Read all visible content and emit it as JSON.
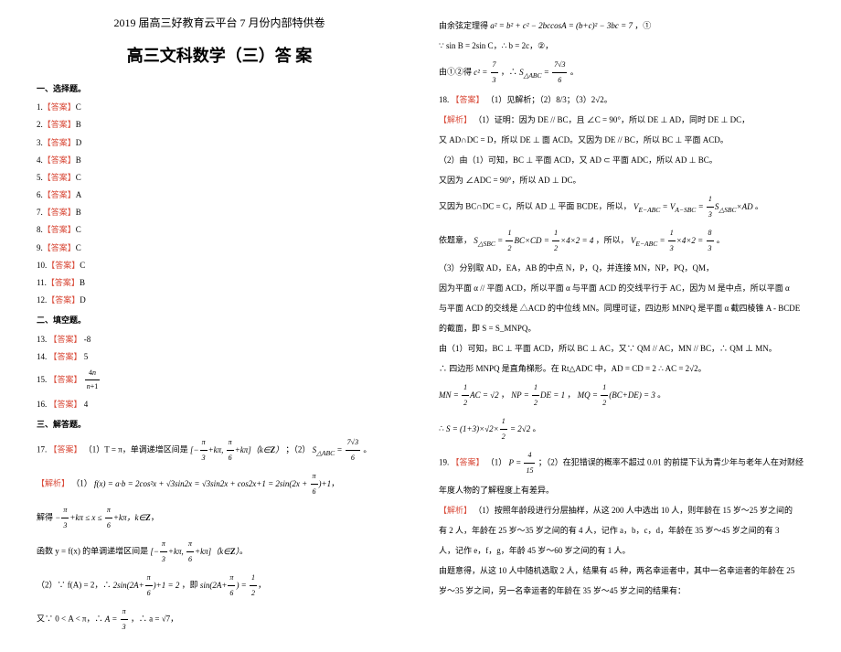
{
  "header": {
    "title": "2019 届高三好教育云平台 7 月份内部特供卷",
    "subtitle": "高三文科数学（三）答 案"
  },
  "sections": {
    "choice": "一、选择题。",
    "fill": "二、填空题。",
    "solve": "三、解答题。"
  },
  "choice_answers": {
    "label": "【答案】",
    "items": [
      {
        "num": "1.",
        "ans": "C"
      },
      {
        "num": "2.",
        "ans": "B"
      },
      {
        "num": "3.",
        "ans": "D"
      },
      {
        "num": "4.",
        "ans": "B"
      },
      {
        "num": "5.",
        "ans": "C"
      },
      {
        "num": "6.",
        "ans": "A"
      },
      {
        "num": "7.",
        "ans": "B"
      },
      {
        "num": "8.",
        "ans": "C"
      },
      {
        "num": "9.",
        "ans": "C"
      },
      {
        "num": "10.",
        "ans": "C"
      },
      {
        "num": "11.",
        "ans": "B"
      },
      {
        "num": "12.",
        "ans": "D"
      }
    ]
  },
  "fill_answers": {
    "label": "【答案】",
    "items": [
      {
        "num": "13.",
        "ans": "-8"
      },
      {
        "num": "14.",
        "ans": "5"
      },
      {
        "num": "15.",
        "ans": "4n/(n+1)"
      },
      {
        "num": "16.",
        "ans": "4"
      }
    ]
  },
  "q17": {
    "num": "17.",
    "answer_label": "【答案】",
    "answer_text": "（1）T = π，单调递增区间是",
    "answer_text2": "；（2）",
    "answer_text3": "。",
    "analysis_label": "【解析】",
    "line1": "（1）",
    "line2": "解得",
    "line3": "函数 y = f(x) 的单调递增区间是",
    "line4": "（2）∵ f(A) = 2，∴",
    "line4b": "，即",
    "line5": "又∵ 0 < A < π，∴",
    "line5b": "，∴ a = √7，"
  },
  "right_col": {
    "line1_a": "由余弦定理得",
    "line1_b": "，①",
    "line2": "∵ sin B = 2sin C，∴ b = 2c，②，",
    "line3a": "由①②得",
    "line3b": "，∴",
    "line3c": "。",
    "q18_num": "18.",
    "q18_label": "【答案】",
    "q18_text": "（1）见解析；（2）8/3；（3）2√2。",
    "q18_analysis": "【解析】",
    "q18_l1": "（1）证明：因为 DE // BC，且 ∠C = 90°，所以 DE ⊥ AD，同时 DE ⊥ DC，",
    "q18_l2": "又 AD∩DC = D，所以 DE ⊥ 面 ACD。又因为 DE // BC，所以 BC ⊥ 平面 ACD。",
    "q18_l3": "（2）由（1）可知，BC ⊥ 平面 ACD，又 AD ⊂ 平面 ADC，所以 AD ⊥ BC。",
    "q18_l4": "又因为 ∠ADC = 90°，所以 AD ⊥ DC。",
    "q18_l5a": "又因为 BC∩DC = C，所以 AD ⊥ 平面 BCDE，所以，",
    "q18_l5b": "。",
    "q18_l6a": "依题意，",
    "q18_l6b": "，所以，",
    "q18_l6c": "。",
    "q18_l7": "（3）分别取 AD，EA，AB 的中点 N，P，Q，并连接 MN，NP，PQ，QM，",
    "q18_l8": "因为平面 α // 平面 ACD，所以平面 α 与平面 ACD 的交线平行于 AC，因为 M 是中点，所以平面 α",
    "q18_l9": "与平面 ACD 的交线是 △ACD 的中位线 MN。同理可证，四边形 MNPQ 是平面 α 截四棱锥 A - BCDE",
    "q18_l10": "的截面，即 S = S_MNPQ。",
    "q18_l11": "由（1）可知，BC ⊥ 平面 ACD，所以 BC ⊥ AC，又∵ QM // AC，MN // BC，∴ QM ⊥ MN。",
    "q18_l12": "∴ 四边形 MNPQ 是直角梯形。在 Rt△ADC 中，AD = CD = 2 ∴ AC = 2√2。",
    "q18_l13": "，",
    "q18_l13b": "，",
    "q18_l13c": "。",
    "q18_l14": "∴",
    "q18_l14b": "。",
    "q19_num": "19.",
    "q19_label": "【答案】",
    "q19_text1": "（1）",
    "q19_text2": "；（2）在犯错误的概率不超过 0.01 的前提下认为青少年与老年人在对财经",
    "q19_text3": "年度人物的了解程度上有差异。",
    "q19_analysis": "【解析】",
    "q19_l1": "（1）按照年龄段进行分层抽样，从这 200 人中选出 10 人，则年龄在 15 岁～25 岁之间的",
    "q19_l2": "有 2 人，年龄在 25 岁～35 岁之间的有 4 人，记作 a，b，c，d，年龄在 35 岁～45 岁之间的有 3",
    "q19_l3": "人，记作 e，f，g，年龄 45 岁～60 岁之间的有 1 人。",
    "q19_l4": "由题意得，从这 10 人中随机选取 2 人，结果有 45 种，两名幸运者中，其中一名幸运者的年龄在 25",
    "q19_l5": "岁～35 岁之间，另一名幸运者的年龄在 35 岁～45 岁之间的结果有："
  },
  "colors": {
    "answer_label": "#d94b3a",
    "text": "#000000",
    "bg": "#ffffff"
  }
}
